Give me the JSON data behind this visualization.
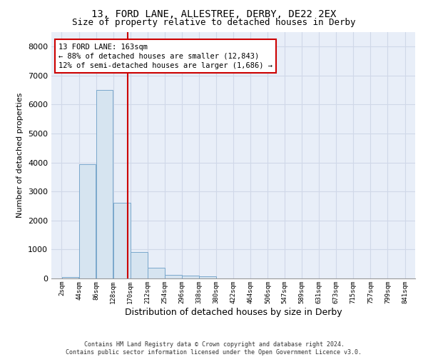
{
  "title": "13, FORD LANE, ALLESTREE, DERBY, DE22 2EX",
  "subtitle": "Size of property relative to detached houses in Derby",
  "xlabel": "Distribution of detached houses by size in Derby",
  "ylabel": "Number of detached properties",
  "footer_line1": "Contains HM Land Registry data © Crown copyright and database right 2024.",
  "footer_line2": "Contains public sector information licensed under the Open Government Licence v3.0.",
  "property_label": "13 FORD LANE: 163sqm",
  "annotation_line1": "← 88% of detached houses are smaller (12,843)",
  "annotation_line2": "12% of semi-detached houses are larger (1,686) →",
  "vline_x": 163,
  "bar_color": "#d6e4f0",
  "bar_edgecolor": "#7aa8cc",
  "vline_color": "#cc0000",
  "grid_color": "#d0d8e8",
  "background_color": "#e8eef8",
  "ylim": [
    0,
    8500
  ],
  "yticks": [
    0,
    1000,
    2000,
    3000,
    4000,
    5000,
    6000,
    7000,
    8000
  ],
  "bins": [
    2,
    44,
    86,
    128,
    170,
    212,
    254,
    296,
    338,
    380,
    422,
    464,
    506,
    547,
    589,
    631,
    673,
    715,
    757,
    799,
    841
  ],
  "counts": [
    40,
    3950,
    6500,
    2600,
    900,
    380,
    130,
    100,
    80,
    0,
    0,
    0,
    0,
    0,
    0,
    0,
    0,
    0,
    0,
    0
  ],
  "title_fontsize": 10,
  "subtitle_fontsize": 9,
  "xlabel_fontsize": 9,
  "ylabel_fontsize": 8,
  "xtick_fontsize": 6.5,
  "ytick_fontsize": 8,
  "annot_fontsize": 7.5,
  "footer_fontsize": 6
}
